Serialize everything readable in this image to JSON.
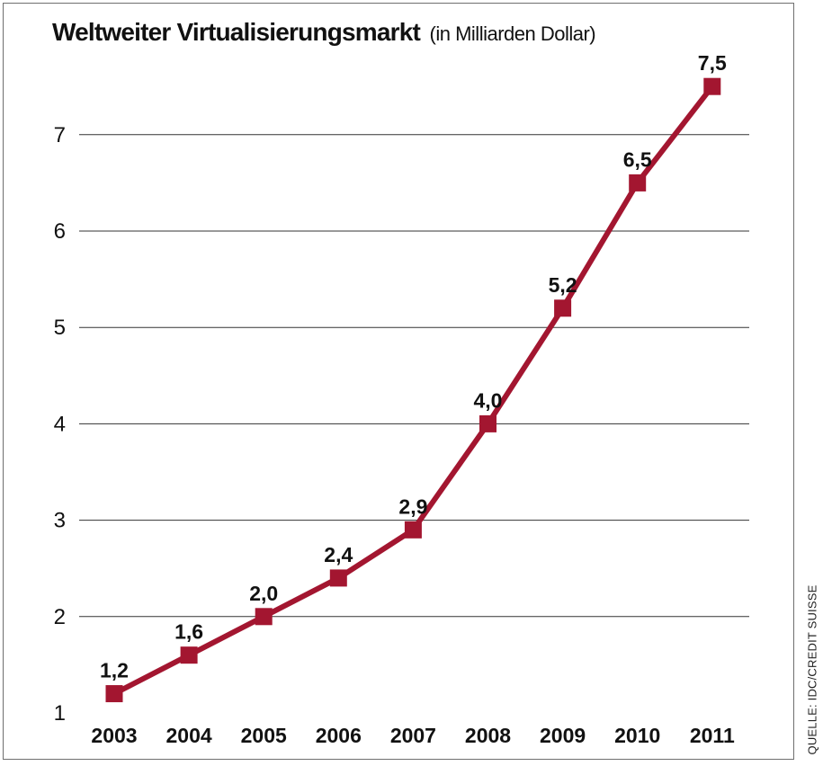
{
  "title": "Weltweiter Virtualisierungsmarkt",
  "subtitle": "(in Milliarden Dollar)",
  "source": "QUELLE: IDC/CREDIT SUISSE",
  "colors": {
    "line": "#a31630",
    "marker": "#a31630",
    "grid": "#333333"
  },
  "chart_data": {
    "type": "line",
    "title": "Weltweiter Virtualisierungsmarkt",
    "subtitle": "(in Milliarden Dollar)",
    "x": [
      "2003",
      "2004",
      "2005",
      "2006",
      "2007",
      "2008",
      "2009",
      "2010",
      "2011"
    ],
    "series": [
      {
        "values": [
          1.2,
          1.6,
          2.0,
          2.4,
          2.9,
          4.0,
          5.2,
          6.5,
          7.5
        ],
        "labels": [
          "1,2",
          "1,6",
          "2,0",
          "2,4",
          "2,9",
          "4,0",
          "5,2",
          "6,5",
          "7,5"
        ]
      }
    ],
    "ylim": [
      1,
      7.5
    ],
    "yticks": [
      1,
      2,
      3,
      4,
      5,
      6,
      7
    ],
    "grid": true,
    "marker": "square"
  }
}
